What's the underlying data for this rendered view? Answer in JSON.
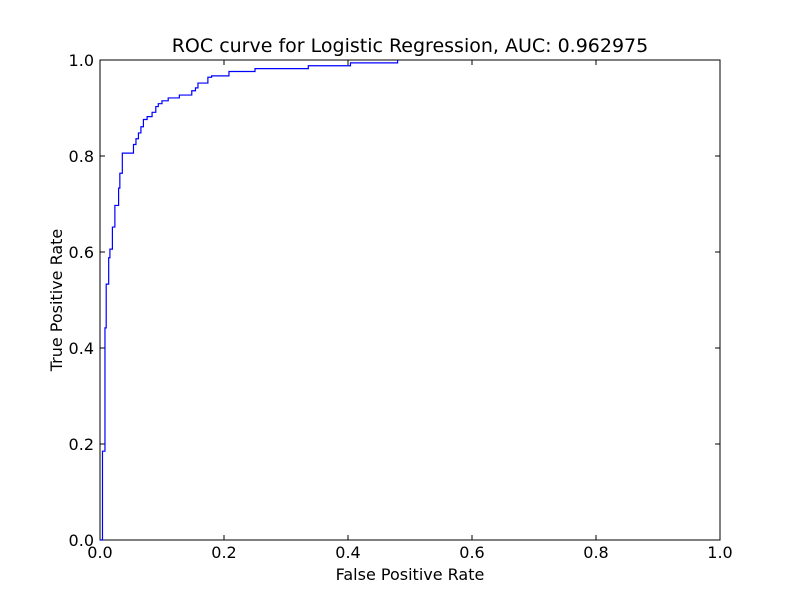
{
  "chart_data": {
    "type": "line",
    "title": "ROC curve for Logistic Regression, AUC: 0.962975",
    "xlabel": "False Positive Rate",
    "ylabel": "True Positive Rate",
    "xlim": [
      0.0,
      1.0
    ],
    "ylim": [
      0.0,
      1.0
    ],
    "xticks": [
      "0.0",
      "0.2",
      "0.4",
      "0.6",
      "0.8",
      "1.0"
    ],
    "yticks": [
      "0.0",
      "0.2",
      "0.4",
      "0.6",
      "0.8",
      "1.0"
    ],
    "grid": false,
    "series": [
      {
        "color": "#0000ff",
        "x": [
          0.0,
          0.004,
          0.004,
          0.008,
          0.008,
          0.01,
          0.01,
          0.014,
          0.014,
          0.016,
          0.016,
          0.02,
          0.02,
          0.024,
          0.024,
          0.03,
          0.03,
          0.032,
          0.032,
          0.036,
          0.036,
          0.04,
          0.04,
          0.054,
          0.054,
          0.058,
          0.058,
          0.062,
          0.062,
          0.066,
          0.066,
          0.07,
          0.07,
          0.076,
          0.076,
          0.084,
          0.084,
          0.09,
          0.09,
          0.094,
          0.094,
          0.1,
          0.1,
          0.11,
          0.11,
          0.128,
          0.128,
          0.148,
          0.148,
          0.154,
          0.154,
          0.158,
          0.158,
          0.174,
          0.174,
          0.18,
          0.18,
          0.208,
          0.208,
          0.25,
          0.25,
          0.336,
          0.336,
          0.404,
          0.404,
          0.48,
          0.48
        ],
        "y": [
          0.0,
          0.0,
          0.185,
          0.185,
          0.442,
          0.442,
          0.533,
          0.533,
          0.588,
          0.588,
          0.606,
          0.606,
          0.652,
          0.652,
          0.697,
          0.697,
          0.733,
          0.733,
          0.764,
          0.764,
          0.806,
          0.806,
          0.806,
          0.806,
          0.824,
          0.824,
          0.836,
          0.836,
          0.848,
          0.848,
          0.861,
          0.861,
          0.876,
          0.876,
          0.882,
          0.882,
          0.891,
          0.891,
          0.903,
          0.903,
          0.909,
          0.909,
          0.915,
          0.915,
          0.921,
          0.921,
          0.927,
          0.927,
          0.936,
          0.936,
          0.942,
          0.942,
          0.952,
          0.952,
          0.964,
          0.964,
          0.967,
          0.967,
          0.976,
          0.976,
          0.982,
          0.982,
          0.988,
          0.988,
          0.994,
          0.994,
          1.0
        ]
      }
    ]
  }
}
